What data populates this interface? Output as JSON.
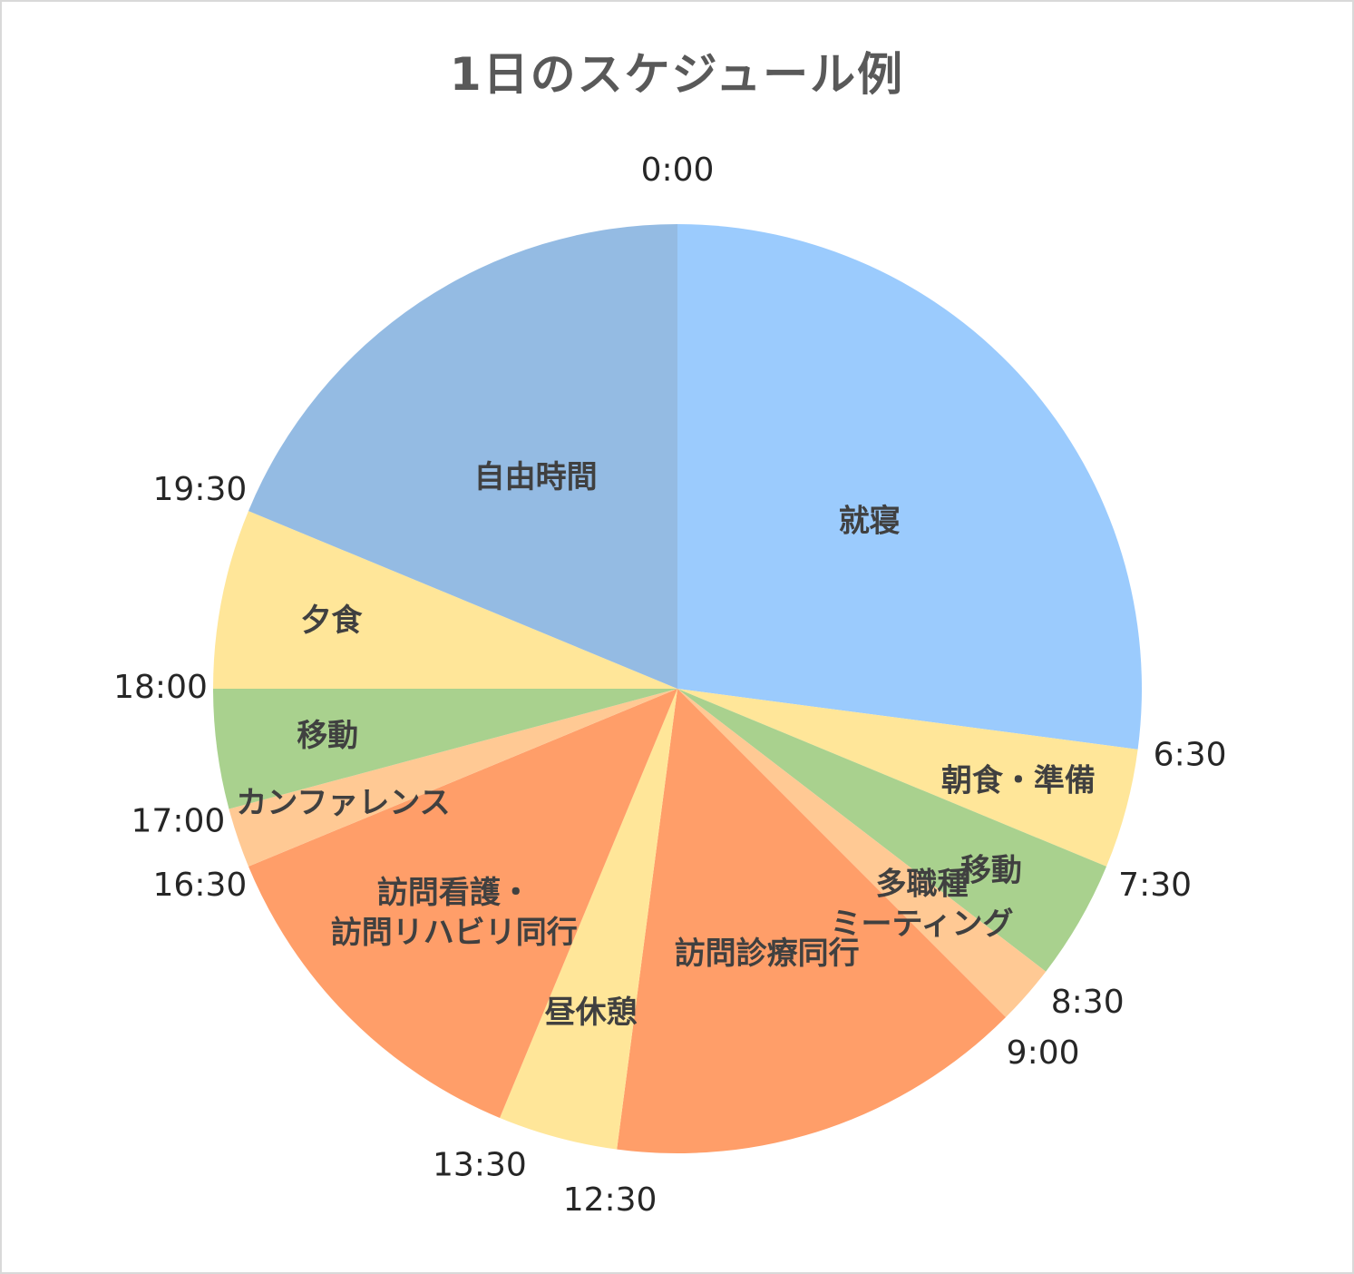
{
  "chart_data": {
    "type": "pie",
    "title": "1日のスケジュール例",
    "unit": "hours",
    "start_label": "0:00",
    "slices": [
      {
        "label": "就寝",
        "label_lines": [
          "就寝"
        ],
        "start": "0:00",
        "end": "6:30",
        "hours": 6.5,
        "color": "#9BCBFD"
      },
      {
        "label": "朝食・準備",
        "label_lines": [
          "朝食・準備"
        ],
        "start": "6:30",
        "end": "7:30",
        "hours": 1.0,
        "color": "#FFE699"
      },
      {
        "label": "移動",
        "label_lines": [
          "移動"
        ],
        "start": "7:30",
        "end": "8:30",
        "hours": 1.0,
        "color": "#A9D18E"
      },
      {
        "label": "多職種ミーティング",
        "label_lines": [
          "多職種",
          "ミーティング"
        ],
        "start": "8:30",
        "end": "9:00",
        "hours": 0.5,
        "color": "#FFC994"
      },
      {
        "label": "訪問診療同行",
        "label_lines": [
          "訪問診療同行"
        ],
        "start": "9:00",
        "end": "12:30",
        "hours": 3.5,
        "color": "#FF9E69"
      },
      {
        "label": "昼休憩",
        "label_lines": [
          "昼休憩"
        ],
        "start": "12:30",
        "end": "13:30",
        "hours": 1.0,
        "color": "#FFE699"
      },
      {
        "label": "訪問看護・訪問リハビリ同行",
        "label_lines": [
          "訪問看護・",
          "訪問リハビリ同行"
        ],
        "start": "13:30",
        "end": "16:30",
        "hours": 3.0,
        "color": "#FF9E69"
      },
      {
        "label": "カンファレンス",
        "label_lines": [
          "カンファレンス"
        ],
        "start": "16:30",
        "end": "17:00",
        "hours": 0.5,
        "color": "#FFC994"
      },
      {
        "label": "移動",
        "label_lines": [
          "移動"
        ],
        "start": "17:00",
        "end": "18:00",
        "hours": 1.0,
        "color": "#A9D18E"
      },
      {
        "label": "夕食",
        "label_lines": [
          "夕食"
        ],
        "start": "18:00",
        "end": "19:30",
        "hours": 1.5,
        "color": "#FFE699"
      },
      {
        "label": "自由時間",
        "label_lines": [
          "自由時間"
        ],
        "start": "19:30",
        "end": "0:00",
        "hours": 4.5,
        "color": "#94BBE3"
      }
    ]
  }
}
